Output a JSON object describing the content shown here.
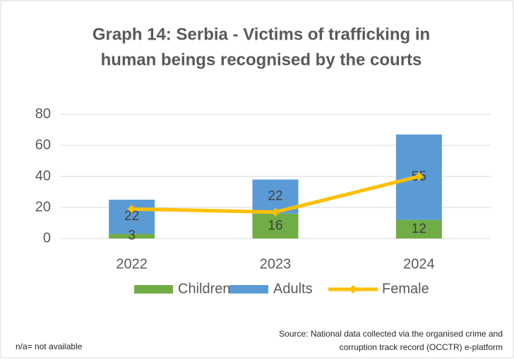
{
  "chart_data": {
    "type": "bar",
    "title": [
      "Graph 14: Serbia - Victims of trafficking in",
      "human beings recognised by the courts"
    ],
    "categories": [
      "2022",
      "2023",
      "2024"
    ],
    "series": [
      {
        "name": "Children",
        "color": "#70ad47",
        "values": [
          3,
          16,
          12
        ]
      },
      {
        "name": "Adults",
        "color": "#5b9bd5",
        "values": [
          22,
          22,
          55
        ]
      },
      {
        "name": "Female",
        "color": "#ffc000",
        "type": "line",
        "values": [
          19,
          17,
          40
        ]
      }
    ],
    "ylim": [
      0,
      80
    ],
    "yticks": [
      0,
      20,
      40,
      60,
      80
    ],
    "grid": true,
    "note": "n/a= not available",
    "source": [
      "Source: National data collected via the organised crime and",
      "corruption track record (OCCTR) e-platform"
    ]
  }
}
